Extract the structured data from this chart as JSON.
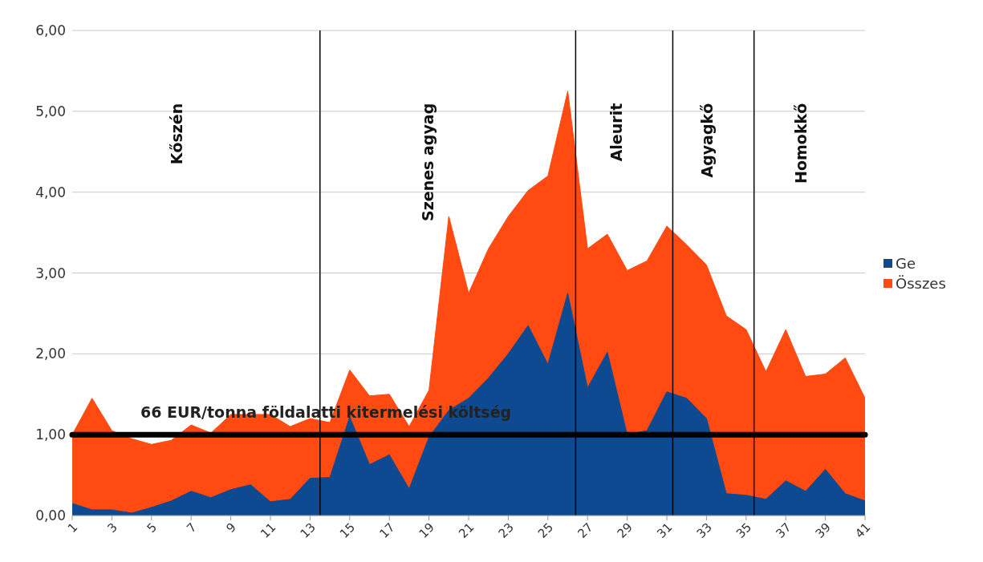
{
  "chart_data": {
    "type": "area",
    "x": [
      1,
      2,
      3,
      4,
      5,
      6,
      7,
      8,
      9,
      10,
      11,
      12,
      13,
      14,
      15,
      16,
      17,
      18,
      19,
      20,
      21,
      22,
      23,
      24,
      25,
      26,
      27,
      28,
      29,
      30,
      31,
      32,
      33,
      34,
      35,
      36,
      37,
      38,
      39,
      40,
      41
    ],
    "series": [
      {
        "name": "Ge",
        "color": "#0d4a91",
        "values": [
          0.15,
          0.07,
          0.07,
          0.03,
          0.1,
          0.18,
          0.3,
          0.22,
          0.32,
          0.38,
          0.17,
          0.2,
          0.46,
          0.47,
          1.22,
          0.63,
          0.75,
          0.33,
          0.97,
          1.3,
          1.45,
          1.7,
          2.0,
          2.35,
          1.87,
          2.75,
          1.58,
          2.02,
          1.0,
          1.05,
          1.53,
          1.45,
          1.2,
          0.27,
          0.25,
          0.2,
          0.43,
          0.3,
          0.57,
          0.27,
          0.18
        ]
      },
      {
        "name": "Összes",
        "color": "#ff4a12",
        "values": [
          1.0,
          1.45,
          1.05,
          0.95,
          0.88,
          0.93,
          1.12,
          1.02,
          1.25,
          1.25,
          1.25,
          1.1,
          1.2,
          1.15,
          1.8,
          1.48,
          1.5,
          1.1,
          1.55,
          3.7,
          2.75,
          3.3,
          3.7,
          4.02,
          4.2,
          5.25,
          3.3,
          3.48,
          3.03,
          3.15,
          3.58,
          3.35,
          3.1,
          2.47,
          2.3,
          1.78,
          2.3,
          1.72,
          1.75,
          1.95,
          1.45
        ]
      }
    ],
    "xlim": [
      1,
      41
    ],
    "xticks": [
      1,
      3,
      5,
      7,
      9,
      11,
      13,
      15,
      17,
      19,
      21,
      23,
      25,
      27,
      29,
      31,
      33,
      35,
      37,
      39,
      41
    ],
    "ylim": [
      0,
      6
    ],
    "yticks": [
      {
        "value": 0,
        "label": "0,00"
      },
      {
        "value": 1,
        "label": "1,00"
      },
      {
        "value": 2,
        "label": "2,00"
      },
      {
        "value": 3,
        "label": "3,00"
      },
      {
        "value": 4,
        "label": "4,00"
      },
      {
        "value": 5,
        "label": "5,00"
      },
      {
        "value": 6,
        "label": "6,00"
      }
    ],
    "ref_lines": [
      {
        "axis": "y",
        "value": 1,
        "label": "66 EUR/tonna földalatti kitermelési költség",
        "color": "#000000"
      },
      {
        "axis": "x",
        "value": 13.5,
        "color": "#000000"
      },
      {
        "axis": "x",
        "value": 26.4,
        "color": "#000000"
      },
      {
        "axis": "x",
        "value": 31.3,
        "color": "#000000"
      },
      {
        "axis": "x",
        "value": 35.4,
        "color": "#000000"
      }
    ],
    "annotations": [
      "Kőszén",
      "Szenes agyag",
      "Aleurit",
      "Agyagkő",
      "Homokkő"
    ],
    "grid": "y",
    "legend": "right"
  }
}
